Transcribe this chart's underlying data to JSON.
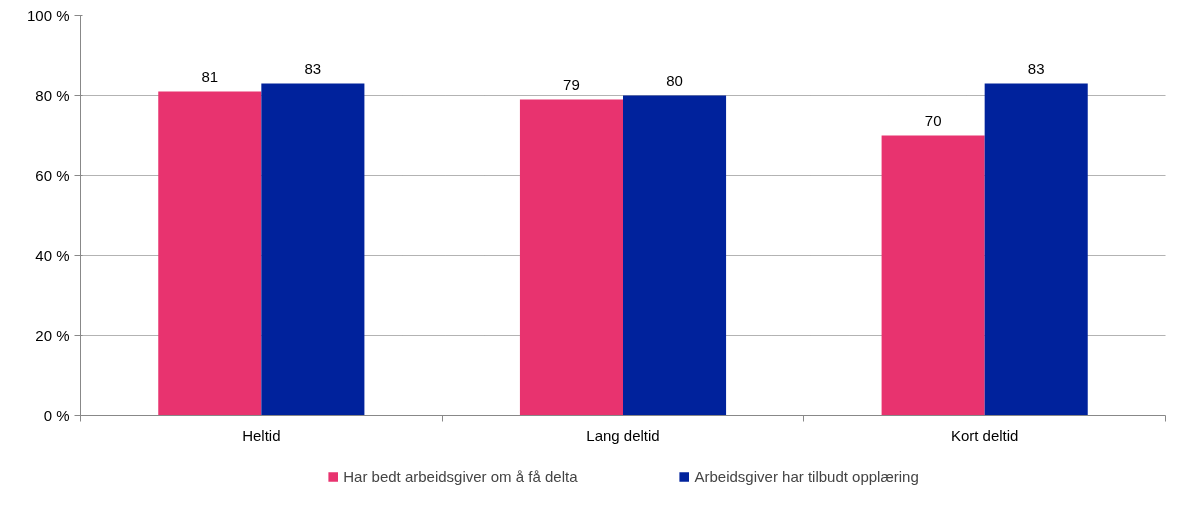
{
  "chart_data": {
    "type": "bar",
    "categories": [
      "Heltid",
      "Lang deltid",
      "Kort deltid"
    ],
    "series": [
      {
        "name": "Har bedt arbeidsgiver om å få delta",
        "color": "#e8336f",
        "values": [
          81,
          79,
          70
        ]
      },
      {
        "name": "Arbeidsgiver har tilbudt opplæring",
        "color": "#00229c",
        "values": [
          83,
          80,
          83
        ]
      }
    ],
    "ylim": [
      0,
      100
    ],
    "yticks": [
      {
        "value": 0,
        "label": "0 %"
      },
      {
        "value": 20,
        "label": "20 %"
      },
      {
        "value": 40,
        "label": "40 %"
      },
      {
        "value": 60,
        "label": "60 %"
      },
      {
        "value": 80,
        "label": "80 %"
      },
      {
        "value": 100,
        "label": "100 %"
      }
    ],
    "grid": "y",
    "legend": "bottom",
    "data_labels": true
  }
}
